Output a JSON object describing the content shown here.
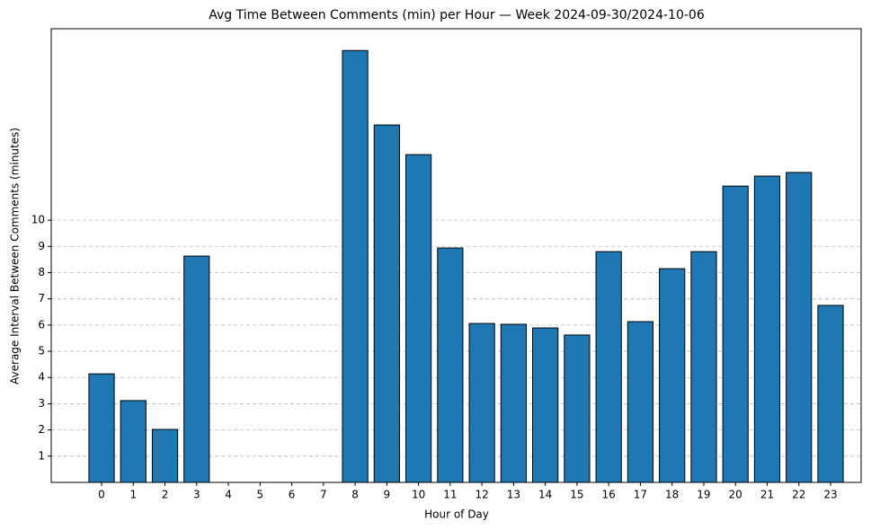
{
  "chart_data": {
    "type": "bar",
    "title": "Avg Time Between Comments (min) per Hour — Week 2024-09-30/2024-10-06",
    "x_label": "Hour of Day",
    "y_label": "Average Interval Between Comments (minutes)",
    "categories": [
      "0",
      "1",
      "2",
      "3",
      "4",
      "5",
      "6",
      "7",
      "8",
      "9",
      "10",
      "11",
      "12",
      "13",
      "14",
      "15",
      "16",
      "17",
      "18",
      "19",
      "20",
      "21",
      "22",
      "23"
    ],
    "values": [
      4.14,
      3.12,
      2.02,
      8.63,
      0,
      0,
      0,
      0,
      16.47,
      13.63,
      12.5,
      8.94,
      6.06,
      6.03,
      5.89,
      5.62,
      8.8,
      6.13,
      8.15,
      8.8,
      11.3,
      11.68,
      11.82,
      6.75
    ],
    "color": "#1f77b4",
    "ylim": [
      0,
      17.3
    ],
    "yticks": [
      1,
      2,
      3,
      4,
      5,
      6,
      7,
      8,
      9,
      10
    ],
    "grid": true
  }
}
